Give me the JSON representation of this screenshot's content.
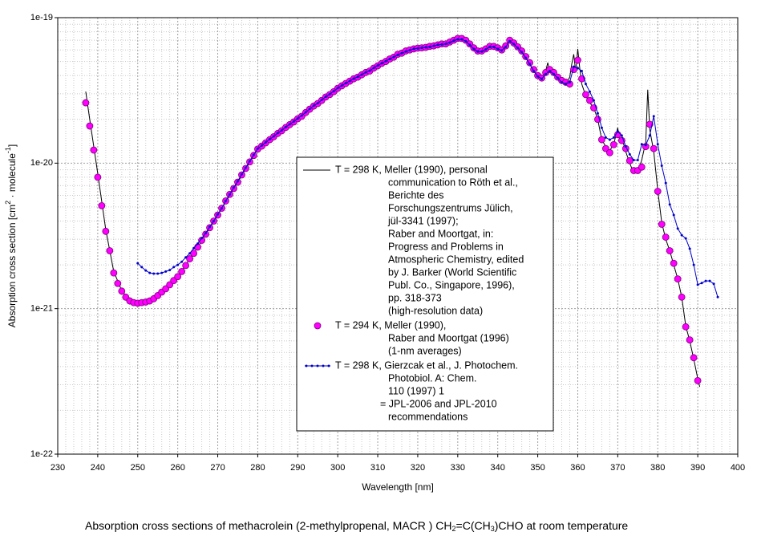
{
  "chart_data": {
    "type": "line",
    "title": [
      "Absorption cross sections of methacrolein (2-methylpropenal, MACR ) CH",
      "2",
      "=C(CH",
      "3",
      ")CHO at room temperature"
    ],
    "xlabel": "Wavelength [nm]",
    "ylabel": [
      "Absorption cross section [cm",
      "2",
      " · molecule",
      "-1",
      "]"
    ],
    "xlim": [
      230,
      400
    ],
    "xticks": [
      230,
      240,
      250,
      260,
      270,
      280,
      290,
      300,
      310,
      320,
      330,
      340,
      350,
      360,
      370,
      380,
      390,
      400
    ],
    "ylim": [
      1e-22,
      1e-19
    ],
    "yticks": [
      {
        "value": 1e-22,
        "label": "1e-22"
      },
      {
        "value": 1e-21,
        "label": "1e-21"
      },
      {
        "value": 1e-20,
        "label": "1e-20"
      },
      {
        "value": 1e-19,
        "label": "1e-19"
      }
    ],
    "log_y": true,
    "grid": true,
    "series": [
      {
        "name": [
          "T = 298 K, Meller (1990), personal",
          "communication to Röth et al.,",
          "Berichte des",
          "Forschungszentrums Jülich,",
          "jül-3341 (1997);",
          "Raber and Moortgat, in:",
          "Progress and Problems in",
          "Atmospheric Chemistry, edited",
          "by J. Barker  (World Scientific",
          "Publ. Co., Singapore, 1996),",
          "pp. 318-373",
          "(high-resolution data)"
        ],
        "style": "line",
        "color": "#000000",
        "x": [
          237,
          238,
          240,
          242,
          244,
          246,
          248,
          250,
          252,
          255,
          260,
          265,
          270,
          275,
          280,
          285,
          290,
          295,
          300,
          305,
          310,
          315,
          320,
          325,
          328,
          330,
          332,
          334,
          336,
          338,
          340,
          342,
          343,
          345,
          347,
          349,
          350,
          351,
          352,
          352.5,
          353,
          354,
          355,
          356,
          357,
          358,
          358.5,
          359,
          359.5,
          360,
          360.5,
          361,
          362,
          363,
          364,
          365,
          366,
          367,
          368,
          369,
          370,
          370.5,
          371,
          372,
          373,
          374,
          375,
          376,
          377,
          377.5,
          378,
          379,
          380,
          381,
          382,
          383,
          384,
          385,
          386,
          387,
          388,
          389,
          390,
          390.5
        ],
        "values": [
          3.1e-20,
          2e-20,
          8.5e-21,
          3.5e-21,
          1.8e-21,
          1.33e-21,
          1.14e-21,
          1.09e-21,
          1.11e-21,
          1.23e-21,
          1.66e-21,
          2.65e-21,
          4.4e-21,
          7.4e-21,
          1.25e-20,
          1.6e-20,
          2.02e-20,
          2.57e-20,
          3.27e-20,
          3.9e-20,
          4.67e-20,
          5.6e-20,
          6.2e-20,
          6.5e-20,
          6.8e-20,
          7.2e-20,
          7e-20,
          6.1e-20,
          5.9e-20,
          6.4e-20,
          6.2e-20,
          6.4e-20,
          7.2e-20,
          6.3e-20,
          5.3e-20,
          4.3e-20,
          3.9e-20,
          3.8e-20,
          4.3e-20,
          4.9e-20,
          4.3e-20,
          4.4e-20,
          3.8e-20,
          3.6e-20,
          3.5e-20,
          3.9e-20,
          4.8e-20,
          5.6e-20,
          4.2e-20,
          6.1e-20,
          4.5e-20,
          3.5e-20,
          2.9e-20,
          2.6e-20,
          2.4e-20,
          2e-20,
          1.45e-20,
          1.3e-20,
          1.22e-20,
          1.35e-20,
          1.75e-20,
          1.4e-20,
          1.5e-20,
          1.2e-20,
          1e-20,
          8.5e-21,
          8.8e-21,
          1.05e-20,
          1.4e-20,
          3.2e-20,
          1.7e-20,
          1.2e-20,
          6.5e-21,
          3.9e-21,
          3e-21,
          2.5e-21,
          2e-21,
          1.6e-21,
          1.2e-21,
          7.6e-22,
          6e-22,
          4.5e-22,
          3.3e-22,
          2.9e-22
        ]
      },
      {
        "name": [
          "T = 294 K, Meller (1990),",
          " Raber and Moortgat (1996)",
          "(1-nm averages)"
        ],
        "style": "markers",
        "color": "#ff00ff",
        "edge_color": "#7a007a",
        "x": [
          237,
          238,
          239,
          240,
          241,
          242,
          243,
          244,
          245,
          246,
          247,
          248,
          249,
          250,
          251,
          252,
          253,
          254,
          255,
          256,
          257,
          258,
          259,
          260,
          261,
          262,
          263,
          264,
          265,
          266,
          267,
          268,
          269,
          270,
          271,
          272,
          273,
          274,
          275,
          276,
          277,
          278,
          279,
          280,
          281,
          282,
          283,
          284,
          285,
          286,
          287,
          288,
          289,
          290,
          291,
          292,
          293,
          294,
          295,
          296,
          297,
          298,
          299,
          300,
          301,
          302,
          303,
          304,
          305,
          306,
          307,
          308,
          309,
          310,
          311,
          312,
          313,
          314,
          315,
          316,
          317,
          318,
          319,
          320,
          321,
          322,
          323,
          324,
          325,
          326,
          327,
          328,
          329,
          330,
          331,
          332,
          333,
          334,
          335,
          336,
          337,
          338,
          339,
          340,
          341,
          342,
          343,
          344,
          345,
          346,
          347,
          348,
          349,
          350,
          351,
          352,
          353,
          354,
          355,
          356,
          357,
          358,
          359,
          360,
          361,
          362,
          363,
          364,
          365,
          366,
          367,
          368,
          369,
          370,
          371,
          372,
          373,
          374,
          375,
          376,
          377,
          378,
          379,
          380,
          381,
          382,
          383,
          384,
          385,
          386,
          387,
          388,
          389,
          390
        ],
        "values": [
          2.6e-20,
          1.8e-20,
          1.23e-20,
          8e-21,
          5.1e-21,
          3.4e-21,
          2.5e-21,
          1.76e-21,
          1.49e-21,
          1.32e-21,
          1.2e-21,
          1.13e-21,
          1.1e-21,
          1.09e-21,
          1.1e-21,
          1.11e-21,
          1.13e-21,
          1.17e-21,
          1.23e-21,
          1.3e-21,
          1.37e-21,
          1.46e-21,
          1.56e-21,
          1.66e-21,
          1.8e-21,
          1.98e-21,
          2.2e-21,
          2.4e-21,
          2.65e-21,
          2.95e-21,
          3.25e-21,
          3.6e-21,
          4e-21,
          4.4e-21,
          4.9e-21,
          5.5e-21,
          6.1e-21,
          6.7e-21,
          7.4e-21,
          8.3e-21,
          9.2e-21,
          1.02e-20,
          1.13e-20,
          1.25e-20,
          1.31e-20,
          1.38e-20,
          1.45e-20,
          1.52e-20,
          1.6e-20,
          1.67e-20,
          1.76e-20,
          1.84e-20,
          1.92e-20,
          2.02e-20,
          2.1e-20,
          2.23e-20,
          2.35e-20,
          2.47e-20,
          2.57e-20,
          2.7e-20,
          2.85e-20,
          2.96e-20,
          3.1e-20,
          3.27e-20,
          3.4e-20,
          3.53e-20,
          3.66e-20,
          3.8e-20,
          3.9e-20,
          4.05e-20,
          4.2e-20,
          4.3e-20,
          4.5e-20,
          4.67e-20,
          4.85e-20,
          5e-20,
          5.2e-20,
          5.35e-20,
          5.6e-20,
          5.7e-20,
          5.9e-20,
          6e-20,
          6.1e-20,
          6.17e-20,
          6.2e-20,
          6.25e-20,
          6.35e-20,
          6.4e-20,
          6.5e-20,
          6.6e-20,
          6.6e-20,
          6.8e-20,
          7e-20,
          7.2e-20,
          7.2e-20,
          7e-20,
          6.6e-20,
          6.2e-20,
          5.9e-20,
          5.9e-20,
          6.1e-20,
          6.35e-20,
          6.35e-20,
          6.2e-20,
          6e-20,
          6.4e-20,
          7e-20,
          6.7e-20,
          6.3e-20,
          5.9e-20,
          5.4e-20,
          4.9e-20,
          4.4e-20,
          4e-20,
          3.85e-20,
          4.2e-20,
          4.4e-20,
          4.2e-20,
          3.9e-20,
          3.7e-20,
          3.6e-20,
          3.5e-20,
          4.4e-20,
          5.1e-20,
          3.8e-20,
          2.96e-20,
          2.7e-20,
          2.4e-20,
          2e-20,
          1.45e-20,
          1.26e-20,
          1.18e-20,
          1.34e-20,
          1.57e-20,
          1.43e-20,
          1.26e-20,
          1.04e-20,
          8.9e-21,
          8.9e-21,
          9.4e-21,
          1.3e-20,
          1.85e-20,
          1.26e-20,
          6.4e-21,
          3.8e-21,
          3.1e-21,
          2.5e-21,
          2.05e-21,
          1.6e-21,
          1.2e-21,
          7.5e-22,
          6.1e-22,
          4.6e-22,
          3.2e-22
        ]
      },
      {
        "name": [
          "T = 298 K, Gierzcak et al., J. Photochem.",
          "Photobiol. A: Chem.",
          "110 (1997) 1",
          "= JPL-2006 and JPL-2010",
          " recommendations"
        ],
        "style": "line-dots",
        "color": "#0000cc",
        "x": [
          250,
          251,
          252,
          253,
          254,
          255,
          256,
          257,
          258,
          259,
          260,
          261,
          262,
          263,
          264,
          265,
          266,
          267,
          268,
          269,
          270,
          271,
          272,
          273,
          274,
          275,
          276,
          277,
          278,
          279,
          280,
          281,
          282,
          283,
          284,
          285,
          286,
          287,
          288,
          289,
          290,
          291,
          292,
          293,
          294,
          295,
          296,
          297,
          298,
          299,
          300,
          301,
          302,
          303,
          304,
          305,
          306,
          307,
          308,
          309,
          310,
          311,
          312,
          313,
          314,
          315,
          316,
          317,
          318,
          319,
          320,
          321,
          322,
          323,
          324,
          325,
          326,
          327,
          328,
          329,
          330,
          331,
          332,
          333,
          334,
          335,
          336,
          337,
          338,
          339,
          340,
          341,
          342,
          343,
          344,
          345,
          346,
          347,
          348,
          349,
          350,
          351,
          352,
          353,
          354,
          355,
          356,
          357,
          358,
          359,
          360,
          361,
          362,
          363,
          364,
          365,
          366,
          367,
          368,
          369,
          370,
          371,
          372,
          373,
          374,
          375,
          376,
          377,
          378,
          379,
          380,
          381,
          382,
          383,
          384,
          385,
          386,
          387,
          388,
          389,
          390,
          391,
          392,
          393,
          394,
          395
        ],
        "values": [
          2.05e-21,
          1.93e-21,
          1.83e-21,
          1.76e-21,
          1.74e-21,
          1.74e-21,
          1.76e-21,
          1.8e-21,
          1.84e-21,
          1.93e-21,
          2e-21,
          2.1e-21,
          2.25e-21,
          2.4e-21,
          2.6e-21,
          2.8e-21,
          3.05e-21,
          3.3e-21,
          3.65e-21,
          4e-21,
          4.45e-21,
          4.9e-21,
          5.5e-21,
          6.1e-21,
          6.8e-21,
          7.5e-21,
          8.4e-21,
          9.3e-21,
          1.03e-20,
          1.14e-20,
          1.26e-20,
          1.32e-20,
          1.39e-20,
          1.46e-20,
          1.53e-20,
          1.61e-20,
          1.68e-20,
          1.77e-20,
          1.85e-20,
          1.93e-20,
          2.03e-20,
          2.12e-20,
          2.24e-20,
          2.36e-20,
          2.48e-20,
          2.58e-20,
          2.72e-20,
          2.86e-20,
          2.98e-20,
          3.12e-20,
          3.28e-20,
          3.41e-20,
          3.54e-20,
          3.67e-20,
          3.81e-20,
          3.92e-20,
          4.06e-20,
          4.21e-20,
          4.32e-20,
          4.51e-20,
          4.68e-20,
          4.86e-20,
          5.02e-20,
          5.2e-20,
          5.36e-20,
          5.55e-20,
          5.7e-20,
          5.85e-20,
          5.98e-20,
          6.1e-20,
          6.15e-20,
          6.2e-20,
          6.25e-20,
          6.3e-20,
          6.4e-20,
          6.5e-20,
          6.55e-20,
          6.6e-20,
          6.75e-20,
          6.95e-20,
          7.1e-20,
          7.1e-20,
          6.9e-20,
          6.5e-20,
          6.1e-20,
          5.85e-20,
          5.85e-20,
          6.05e-20,
          6.3e-20,
          6.3e-20,
          6.1e-20,
          5.95e-20,
          6.3e-20,
          6.9e-20,
          6.6e-20,
          6.2e-20,
          5.8e-20,
          5.3e-20,
          4.8e-20,
          4.3e-20,
          3.95e-20,
          3.8e-20,
          4.1e-20,
          4.3e-20,
          4.1e-20,
          3.85e-20,
          3.6e-20,
          3.5e-20,
          3.6e-20,
          4.6e-20,
          4.5e-20,
          4.3e-20,
          3.5e-20,
          3.1e-20,
          2.7e-20,
          2.2e-20,
          1.75e-20,
          1.5e-20,
          1.45e-20,
          1.5e-20,
          1.65e-20,
          1.55e-20,
          1.3e-20,
          1.15e-20,
          1.05e-20,
          1.05e-20,
          1.35e-20,
          1.33e-20,
          1.55e-20,
          2.1e-20,
          1.35e-20,
          9.6e-21,
          7.3e-21,
          5.2e-21,
          4.4e-21,
          3.55e-21,
          3.2e-21,
          3.04e-21,
          2.58e-21,
          2e-21,
          1.46e-21,
          1.5e-21,
          1.55e-21,
          1.55e-21,
          1.48e-21,
          1.2e-21
        ]
      }
    ]
  }
}
